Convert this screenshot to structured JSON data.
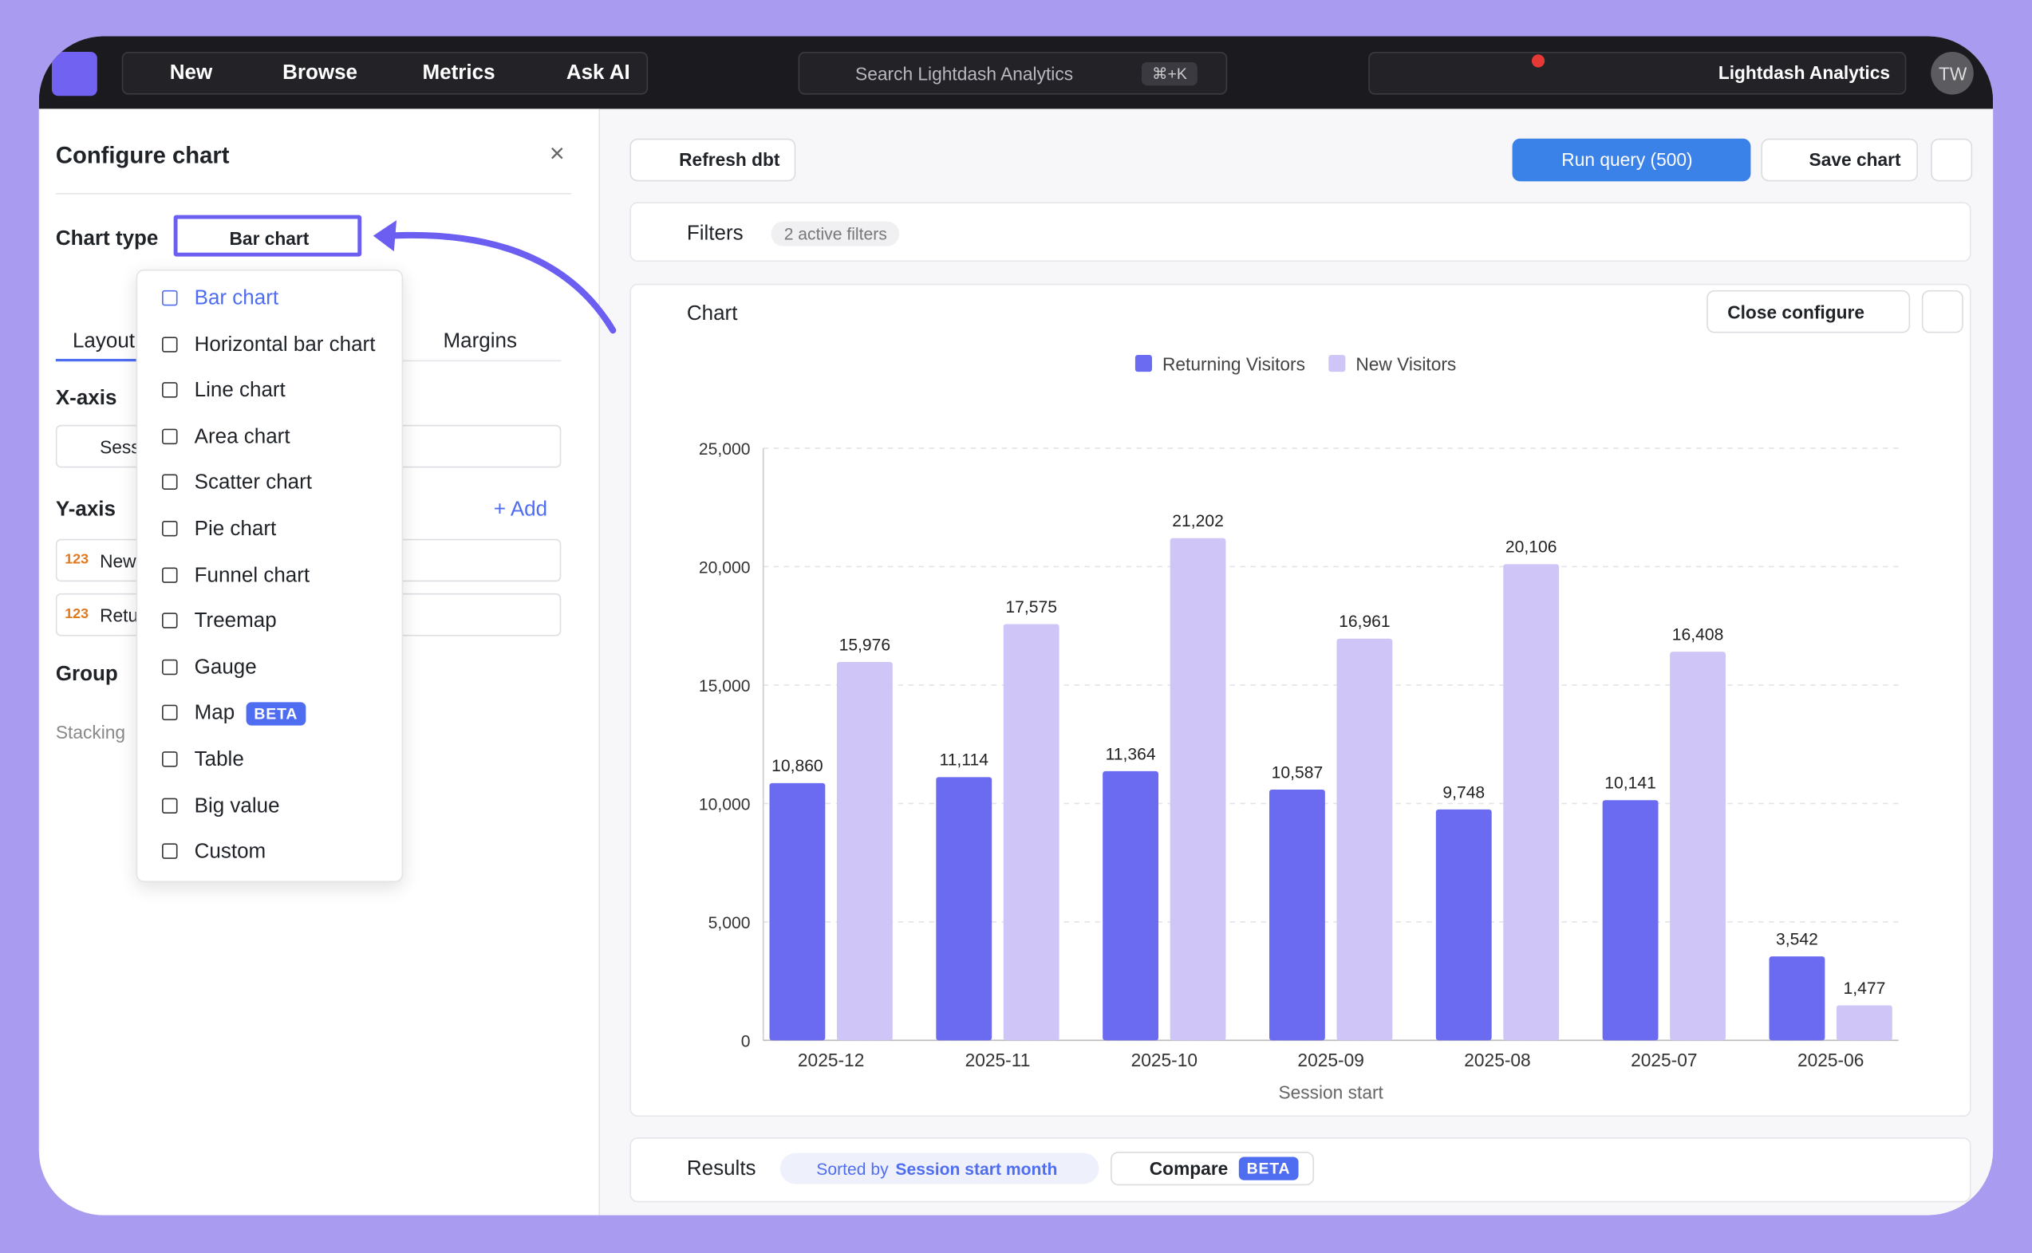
{
  "nav": {
    "items": [
      "New",
      "Browse",
      "Metrics",
      "Ask AI"
    ],
    "search": "Search Lightdash Analytics",
    "shortcut": "⌘+K",
    "org": "Lightdash Analytics",
    "avatar": "TW"
  },
  "config": {
    "title": "Configure chart",
    "chart_type_label": "Chart type",
    "chart_type": "Bar chart",
    "tabs": [
      "Layout",
      "Margins"
    ],
    "x_axis_label": "X-axis",
    "x_field": "Sess",
    "y_axis_label": "Y-axis",
    "add": "+ Add",
    "number_icon": "123",
    "y_fields": [
      "New",
      "Retu"
    ],
    "group": "Group",
    "stacking": "Stacking"
  },
  "dropdown": {
    "items": [
      {
        "label": "Bar chart"
      },
      {
        "label": "Horizontal bar chart"
      },
      {
        "label": "Line chart"
      },
      {
        "label": "Area chart"
      },
      {
        "label": "Scatter chart"
      },
      {
        "label": "Pie chart"
      },
      {
        "label": "Funnel chart"
      },
      {
        "label": "Treemap"
      },
      {
        "label": "Gauge"
      },
      {
        "label": "Map",
        "badge": "BETA"
      },
      {
        "label": "Table"
      },
      {
        "label": "Big value"
      },
      {
        "label": "Custom"
      }
    ]
  },
  "toolbar": {
    "refresh": "Refresh dbt",
    "run": "Run query (500)",
    "save": "Save chart"
  },
  "filters": {
    "label": "Filters",
    "count": "2 active filters"
  },
  "chart_panel": {
    "label": "Chart",
    "close": "Close configure"
  },
  "results": {
    "label": "Results",
    "sorted_prefix": "Sorted by",
    "sorted_field": "Session start month",
    "compare": "Compare",
    "badge": "BETA"
  },
  "chart_data": {
    "type": "bar",
    "x_label": "Session start",
    "categories": [
      "2025-12",
      "2025-11",
      "2025-10",
      "2025-09",
      "2025-08",
      "2025-07",
      "2025-06"
    ],
    "series": [
      {
        "name": "Returning Visitors",
        "color": "#6b6bf2",
        "values": [
          10860,
          11114,
          11364,
          10587,
          9748,
          10141,
          3542
        ],
        "value_labels": [
          "10,860",
          "11,114",
          "11,364",
          "10,587",
          "9,748",
          "10,141",
          "3,542"
        ]
      },
      {
        "name": "New Visitors",
        "color": "#cfc6f7",
        "values": [
          15976,
          17575,
          21202,
          16961,
          20106,
          16408,
          1477
        ],
        "value_labels": [
          "15,976",
          "17,575",
          "21,202",
          "16,961",
          "20,106",
          "16,408",
          "1,477"
        ]
      }
    ],
    "ylim": [
      0,
      25000
    ],
    "yticks": [
      0,
      {
        "value": 5000,
        "label": "5,000"
      },
      {
        "value": 10000,
        "label": "10,000"
      },
      {
        "value": 15000,
        "label": "15,000"
      },
      {
        "value": 20000,
        "label": "20,000"
      },
      {
        "value": 25000,
        "label": "25,000"
      }
    ],
    "grid": true
  }
}
